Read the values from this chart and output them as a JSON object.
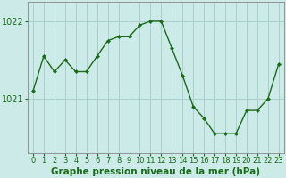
{
  "x": [
    0,
    1,
    2,
    3,
    4,
    5,
    6,
    7,
    8,
    9,
    10,
    11,
    12,
    13,
    14,
    15,
    16,
    17,
    18,
    19,
    20,
    21,
    22,
    23
  ],
  "y": [
    1021.1,
    1021.55,
    1021.35,
    1021.5,
    1021.35,
    1021.35,
    1021.55,
    1021.75,
    1021.8,
    1021.8,
    1021.95,
    1022.0,
    1022.0,
    1021.65,
    1021.3,
    1020.9,
    1020.75,
    1020.55,
    1020.55,
    1020.55,
    1020.85,
    1020.85,
    1021.0,
    1021.45
  ],
  "line_color": "#1a6b1a",
  "marker": "D",
  "marker_size": 2.0,
  "background_color": "#cceae7",
  "grid_color": "#aacfcc",
  "xlabel": "Graphe pression niveau de la mer (hPa)",
  "xlabel_fontsize": 7.5,
  "ytick_labels": [
    "1021",
    "1022"
  ],
  "ytick_values": [
    1021.0,
    1022.0
  ],
  "ylim": [
    1020.3,
    1022.25
  ],
  "xlim": [
    -0.5,
    23.5
  ],
  "xtick_labels": [
    "0",
    "1",
    "2",
    "3",
    "4",
    "5",
    "6",
    "7",
    "8",
    "9",
    "10",
    "11",
    "12",
    "13",
    "14",
    "15",
    "16",
    "17",
    "18",
    "19",
    "20",
    "21",
    "22",
    "23"
  ],
  "tick_fontsize": 6.0,
  "ytick_fontsize": 7.0,
  "axis_color": "#888888"
}
